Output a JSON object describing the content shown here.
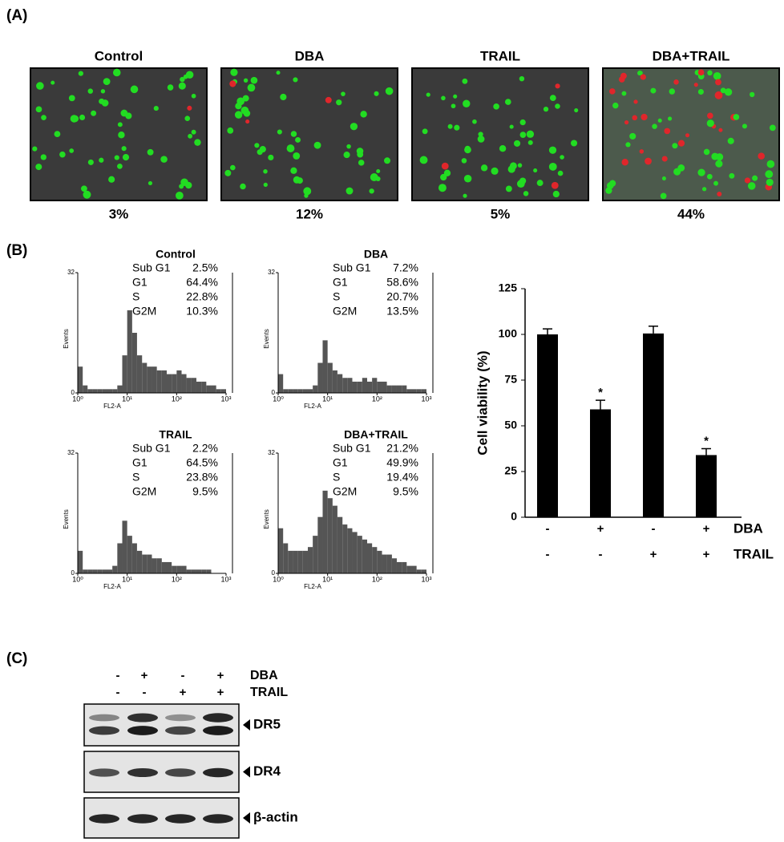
{
  "panel_a": {
    "label": "(A)",
    "images": [
      {
        "title": "Control",
        "percent": "3%"
      },
      {
        "title": "DBA",
        "percent": "12%"
      },
      {
        "title": "TRAIL",
        "percent": "5%"
      },
      {
        "title": "DBA+TRAIL",
        "percent": "44%"
      }
    ]
  },
  "panel_b_label": "(B)",
  "chart_data": [
    {
      "type": "histogram",
      "title": "Control",
      "stats": [
        [
          "Sub G1",
          "2.5%"
        ],
        [
          "G1",
          "64.4%"
        ],
        [
          "S",
          "22.8%"
        ],
        [
          "G2M",
          "10.3%"
        ]
      ],
      "ylabel": "Events",
      "xlabel": "FL2-A",
      "log_x": true,
      "xlim": [
        1,
        1000
      ],
      "xticks": [
        {
          "value": 1,
          "label": "10⁰"
        },
        {
          "value": 10,
          "label": "10¹"
        },
        {
          "value": 100,
          "label": "10²"
        },
        {
          "value": 1000,
          "label": "10³"
        }
      ],
      "ylim": [
        0,
        32
      ],
      "yticks": [
        0,
        32
      ],
      "color": "#555555",
      "bins": [
        1,
        1.26,
        1.58,
        2,
        2.51,
        3.16,
        3.98,
        5.01,
        6.31,
        7.94,
        10,
        12.6,
        15.8,
        20,
        25.1,
        31.6,
        39.8,
        50.1,
        63.1,
        79.4,
        100,
        126,
        158,
        200,
        251,
        316,
        398,
        501,
        631,
        794,
        1000
      ],
      "counts": [
        7,
        2,
        1,
        1,
        1,
        1,
        1,
        1,
        2,
        10,
        22,
        16,
        10,
        8,
        7,
        7,
        6,
        6,
        5,
        5,
        6,
        5,
        4,
        4,
        3,
        3,
        2,
        2,
        1,
        1
      ]
    },
    {
      "type": "histogram",
      "title": "DBA",
      "stats": [
        [
          "Sub G1",
          "7.2%"
        ],
        [
          "G1",
          "58.6%"
        ],
        [
          "S",
          "20.7%"
        ],
        [
          "G2M",
          "13.5%"
        ]
      ],
      "ylabel": "Events",
      "xlabel": "FL2-A",
      "log_x": true,
      "xlim": [
        1,
        1000
      ],
      "xticks": [
        {
          "value": 1,
          "label": "10⁰"
        },
        {
          "value": 10,
          "label": "10¹"
        },
        {
          "value": 100,
          "label": "10²"
        },
        {
          "value": 1000,
          "label": "10³"
        }
      ],
      "ylim": [
        0,
        32
      ],
      "yticks": [
        0,
        32
      ],
      "color": "#555555",
      "bins": [
        1,
        1.26,
        1.58,
        2,
        2.51,
        3.16,
        3.98,
        5.01,
        6.31,
        7.94,
        10,
        12.6,
        15.8,
        20,
        25.1,
        31.6,
        39.8,
        50.1,
        63.1,
        79.4,
        100,
        126,
        158,
        200,
        251,
        316,
        398,
        501,
        631,
        794,
        1000
      ],
      "counts": [
        5,
        1,
        1,
        1,
        1,
        1,
        1,
        2,
        8,
        14,
        8,
        6,
        5,
        4,
        4,
        3,
        3,
        4,
        3,
        4,
        3,
        3,
        2,
        2,
        2,
        2,
        1,
        1,
        1,
        1
      ]
    },
    {
      "type": "histogram",
      "title": "TRAIL",
      "stats": [
        [
          "Sub G1",
          "2.2%"
        ],
        [
          "G1",
          "64.5%"
        ],
        [
          "S",
          "23.8%"
        ],
        [
          "G2M",
          "9.5%"
        ]
      ],
      "ylabel": "Events",
      "xlabel": "FL2-A",
      "log_x": true,
      "xlim": [
        1,
        1000
      ],
      "xticks": [
        {
          "value": 1,
          "label": "10⁰"
        },
        {
          "value": 10,
          "label": "10¹"
        },
        {
          "value": 100,
          "label": "10²"
        },
        {
          "value": 1000,
          "label": "10³"
        }
      ],
      "ylim": [
        0,
        32
      ],
      "yticks": [
        0,
        32
      ],
      "color": "#555555",
      "bins": [
        1,
        1.26,
        1.58,
        2,
        2.51,
        3.16,
        3.98,
        5.01,
        6.31,
        7.94,
        10,
        12.6,
        15.8,
        20,
        25.1,
        31.6,
        39.8,
        50.1,
        63.1,
        79.4,
        100,
        126,
        158,
        200,
        251,
        316,
        398,
        501,
        631,
        794,
        1000
      ],
      "counts": [
        6,
        1,
        1,
        1,
        1,
        1,
        1,
        2,
        8,
        14,
        10,
        8,
        6,
        5,
        5,
        4,
        4,
        3,
        3,
        2,
        2,
        2,
        1,
        1,
        1,
        1,
        1,
        0,
        0,
        0
      ]
    },
    {
      "type": "histogram",
      "title": "DBA+TRAIL",
      "stats": [
        [
          "Sub G1",
          "21.2%"
        ],
        [
          "G1",
          "49.9%"
        ],
        [
          "S",
          "19.4%"
        ],
        [
          "G2M",
          "9.5%"
        ]
      ],
      "ylabel": "Events",
      "xlabel": "FL2-A",
      "log_x": true,
      "xlim": [
        1,
        1000
      ],
      "xticks": [
        {
          "value": 1,
          "label": "10⁰"
        },
        {
          "value": 10,
          "label": "10¹"
        },
        {
          "value": 100,
          "label": "10²"
        },
        {
          "value": 1000,
          "label": "10³"
        }
      ],
      "ylim": [
        0,
        32
      ],
      "yticks": [
        0,
        32
      ],
      "color": "#555555",
      "bins": [
        1,
        1.26,
        1.58,
        2,
        2.51,
        3.16,
        3.98,
        5.01,
        6.31,
        7.94,
        10,
        12.6,
        15.8,
        20,
        25.1,
        31.6,
        39.8,
        50.1,
        63.1,
        79.4,
        100,
        126,
        158,
        200,
        251,
        316,
        398,
        501,
        631,
        794,
        1000
      ],
      "counts": [
        12,
        8,
        6,
        6,
        6,
        6,
        7,
        10,
        15,
        22,
        20,
        18,
        15,
        13,
        12,
        11,
        10,
        9,
        8,
        7,
        6,
        5,
        5,
        4,
        3,
        3,
        2,
        2,
        1,
        1
      ]
    },
    {
      "type": "bar",
      "ylabel": "Cell viability (%)",
      "values": [
        100,
        59,
        100.5,
        34
      ],
      "errors": [
        3,
        5,
        4,
        3.5
      ],
      "significance": [
        null,
        "*",
        null,
        "*"
      ],
      "color": "#000000",
      "ylim": [
        0,
        125
      ],
      "yticks": [
        0,
        25,
        50,
        75,
        100,
        125
      ],
      "category_rows": [
        {
          "name": "DBA",
          "labels": [
            "-",
            "+",
            "-",
            "+"
          ]
        },
        {
          "name": "TRAIL",
          "labels": [
            "-",
            "-",
            "+",
            "+"
          ]
        }
      ]
    }
  ],
  "panel_c": {
    "label": "(C)",
    "rows": [
      {
        "name": "DBA",
        "labels": [
          "-",
          "+",
          "-",
          "+"
        ]
      },
      {
        "name": "TRAIL",
        "labels": [
          "-",
          "-",
          "+",
          "+"
        ]
      }
    ],
    "blots": [
      "DR5",
      "DR4",
      "β-actin"
    ]
  }
}
